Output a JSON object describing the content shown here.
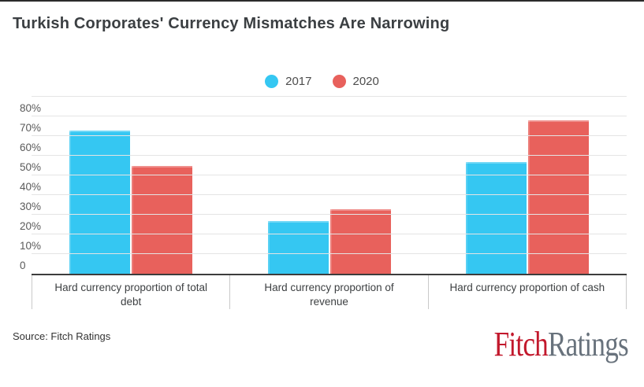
{
  "chart_data": {
    "type": "bar",
    "title": "Turkish Corporates' Currency Mismatches Are Narrowing",
    "categories": [
      "Hard currency proportion of total\ndebt",
      "Hard currency proportion of\nrevenue",
      "Hard currency proportion of cash"
    ],
    "category_keys": [
      "total-debt",
      "revenue",
      "cash"
    ],
    "series": [
      {
        "name": "2017",
        "color": "#35C7F2",
        "values": [
          73,
          27,
          57
        ]
      },
      {
        "name": "2020",
        "color": "#E8615C",
        "values": [
          55,
          33,
          78
        ]
      }
    ],
    "xlabel": "",
    "ylabel": "",
    "ylim": [
      0,
      90
    ],
    "yticks": [
      0,
      10,
      20,
      30,
      40,
      50,
      60,
      70,
      80
    ],
    "ytick_suffix": "%",
    "zero_tick_label": "0",
    "grid": true,
    "legend_position": "top-center"
  },
  "footer": {
    "source": "Source: Fitch Ratings",
    "logo_fitch": "Fitch",
    "logo_ratings": "Ratings"
  },
  "colors": {
    "series_2017": "#35C7F2",
    "series_2020": "#E8615C",
    "gridline": "#e4e4e4",
    "axis": "#3c3c3c",
    "logo_fitch": "#C2182C",
    "logo_ratings": "#68727C",
    "top_rule": "#2b2b2b"
  }
}
